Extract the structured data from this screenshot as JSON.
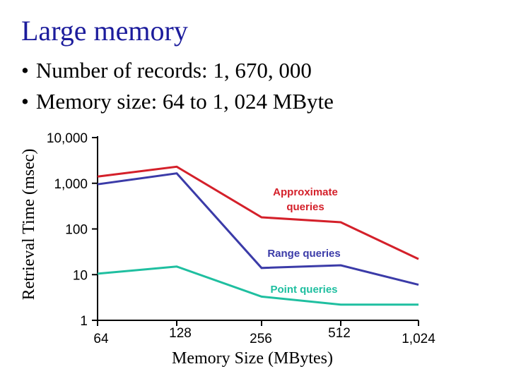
{
  "slide": {
    "title": "Large memory",
    "bullets": [
      "Number of records: 1, 670, 000",
      "Memory size: 64 to 1, 024 MByte"
    ]
  },
  "chart_data": {
    "type": "line",
    "x": [
      64,
      128,
      256,
      512,
      1024
    ],
    "x_tick_labels": [
      "64",
      "128",
      "256",
      "512",
      "1,024"
    ],
    "xlabel": "Memory Size (MBytes)",
    "ylabel": "Retrieval Time (msec)",
    "y_scale": "log",
    "ylim": [
      1,
      10000
    ],
    "y_tick_labels": [
      "10,000",
      "1,000",
      "100",
      "10",
      "1"
    ],
    "y_ticks": [
      10000,
      1000,
      100,
      10,
      1
    ],
    "grid": false,
    "series": [
      {
        "name": "Approximate queries",
        "label_lines": [
          "Approximate",
          "queries"
        ],
        "color": "#d4202a",
        "values": [
          1400,
          2300,
          180,
          140,
          22
        ]
      },
      {
        "name": "Range queries",
        "label_lines": [
          "Range queries"
        ],
        "color": "#3b3ba8",
        "values": [
          950,
          1650,
          14,
          16,
          6
        ]
      },
      {
        "name": "Point queries",
        "label_lines": [
          "Point queries"
        ],
        "color": "#1fbfa0",
        "values": [
          10.5,
          15,
          3.3,
          2.2,
          2.2
        ]
      }
    ]
  }
}
